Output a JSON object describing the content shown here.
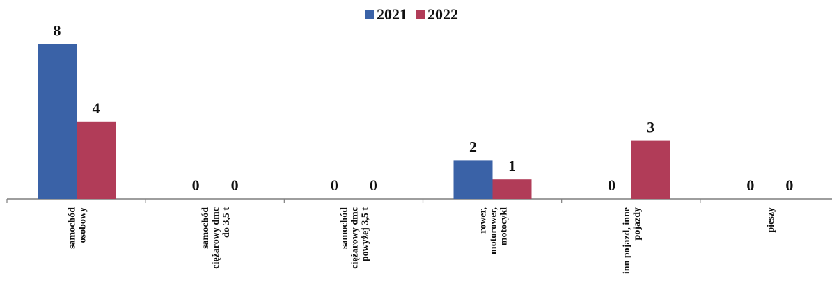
{
  "colors": {
    "s2021": "#3a62a7",
    "s2022": "#b13c58",
    "axis": "#7f7f7f"
  },
  "chart_data": {
    "type": "bar",
    "title": "",
    "xlabel": "",
    "ylabel": "",
    "ylim": [
      0,
      8
    ],
    "grid": false,
    "legend_position": "top-center",
    "categories": [
      [
        "samochód",
        "osobowy"
      ],
      [
        "samochód",
        "ciężarowy dmc",
        "do 3,5 t"
      ],
      [
        "samochód",
        "ciężarowy dmc",
        "powyżej 3,5 t"
      ],
      [
        "rower,",
        "motorower,",
        "motocykl"
      ],
      [
        "inn pojazd, inne",
        "pojazdy"
      ],
      [
        "pieszy"
      ]
    ],
    "series": [
      {
        "name": "2021",
        "values": [
          8,
          0,
          0,
          2,
          0,
          0
        ]
      },
      {
        "name": "2022",
        "values": [
          4,
          0,
          0,
          1,
          3,
          0
        ]
      }
    ]
  }
}
